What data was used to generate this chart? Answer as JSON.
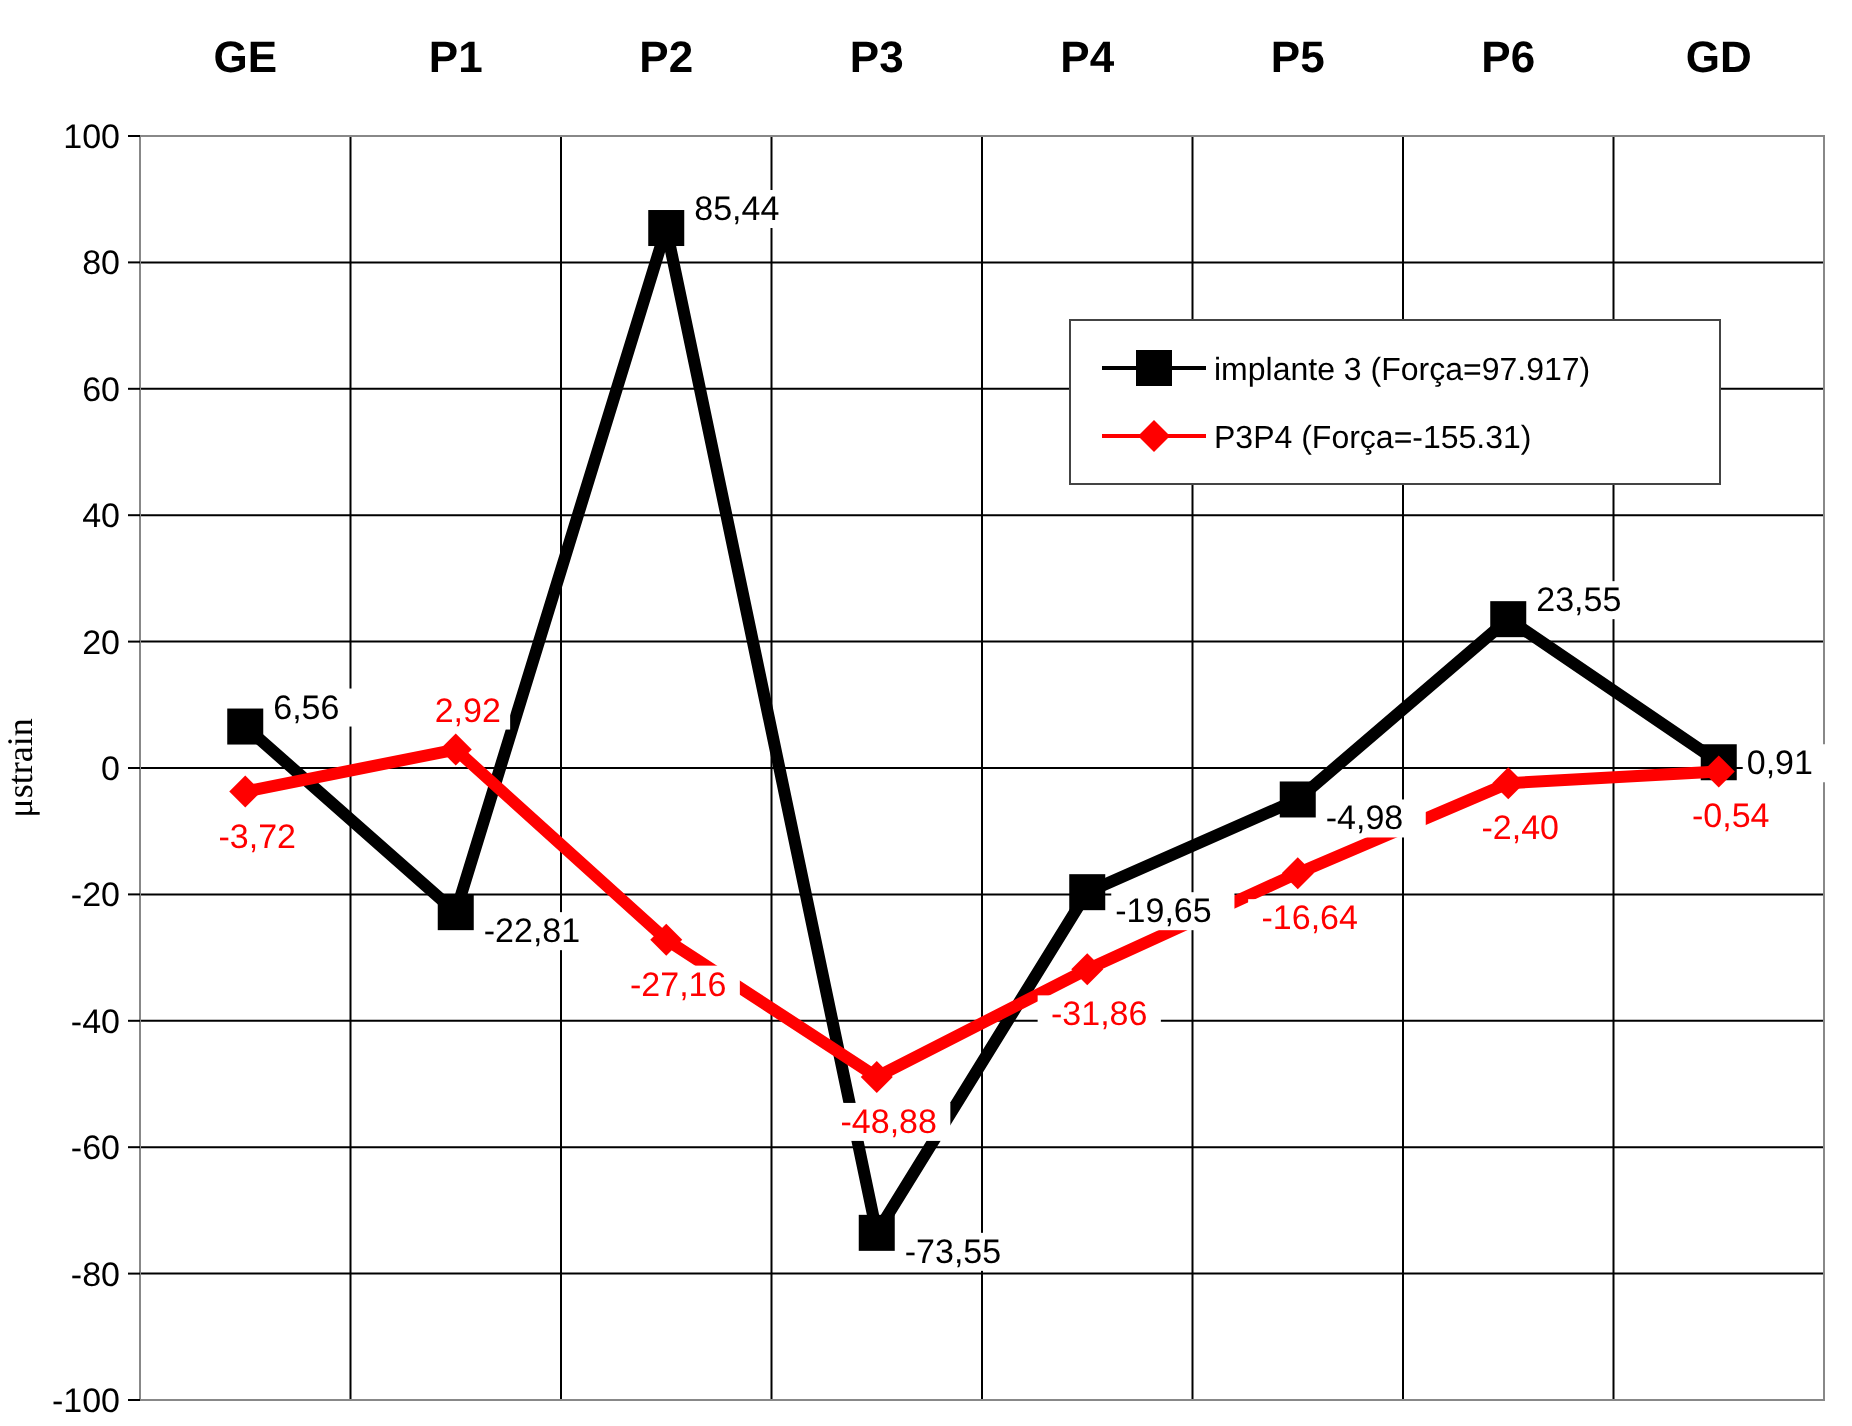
{
  "chart_data": {
    "type": "line",
    "ylabel": "μstrain",
    "categories": [
      "GE",
      "P1",
      "P2",
      "P3",
      "P4",
      "P5",
      "P6",
      "GD"
    ],
    "ylim": [
      -100,
      100
    ],
    "yticks": [
      -100,
      -80,
      -60,
      -40,
      -20,
      0,
      20,
      40,
      60,
      80,
      100
    ],
    "grid": true,
    "legend": "top right",
    "series": [
      {
        "name": "implante 3 (Força=97.917)",
        "color": "#000000",
        "marker": "square",
        "values": [
          6.56,
          -22.81,
          85.44,
          -73.55,
          -19.65,
          -4.98,
          23.55,
          0.91
        ],
        "value_labels": [
          "6,56",
          "-22,81",
          "85,44",
          "-73,55",
          "-19,65",
          "-4,98",
          "23,55",
          "0,91"
        ]
      },
      {
        "name": "P3P4 (Força=-155.31)",
        "color": "#ff0000",
        "marker": "diamond",
        "values": [
          -3.72,
          2.92,
          -27.16,
          -48.88,
          -31.86,
          -16.64,
          -2.4,
          -0.54
        ],
        "value_labels": [
          "-3,72",
          "2,92",
          "-27,16",
          "-48,88",
          "-31,86",
          "-16,64",
          "-2,40",
          "-0,54"
        ]
      }
    ]
  }
}
